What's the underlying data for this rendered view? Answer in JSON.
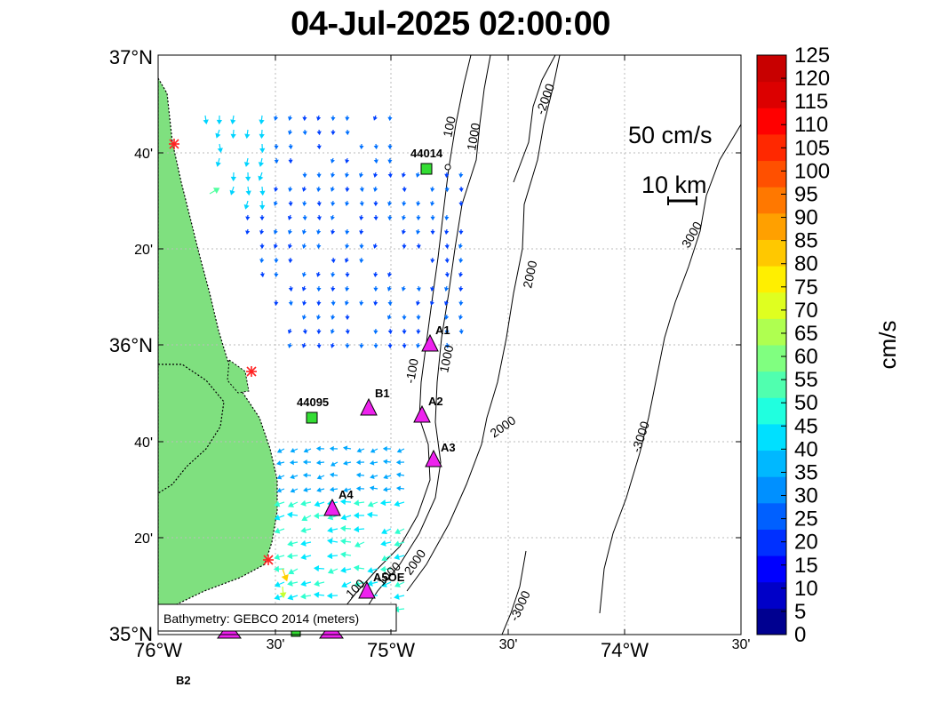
{
  "title": "04-Jul-2025 02:00:00",
  "map": {
    "lat_ticks": [
      {
        "label": "37°N",
        "big": true
      },
      {
        "label": "40'",
        "big": false
      },
      {
        "label": "20'",
        "big": false
      },
      {
        "label": "36°N",
        "big": true
      },
      {
        "label": "40'",
        "big": false
      },
      {
        "label": "20'",
        "big": false
      },
      {
        "label": "35°N",
        "big": true
      }
    ],
    "lon_ticks": [
      {
        "label": "76°W",
        "big": true
      },
      {
        "label": "30'",
        "big": false
      },
      {
        "label": "75°W",
        "big": true
      },
      {
        "label": "30'",
        "big": false
      },
      {
        "label": "74°W",
        "big": true
      },
      {
        "label": "30'",
        "big": false
      }
    ],
    "scale_speed_label": "50 cm/s",
    "scale_distance_label": "10 km",
    "bathymetry_note": "Bathymetry: GEBCO 2014 (meters)",
    "contour_labels": [
      "100",
      "1000",
      "-2000",
      "3000",
      "2000",
      "-100",
      "1000",
      "2000",
      "-3000",
      "100",
      "1000",
      "2000",
      "-3000"
    ],
    "stations": {
      "buoys": [
        "44014",
        "44095"
      ],
      "triangles": [
        "A1",
        "B1",
        "A2",
        "A3",
        "A4",
        "A5OE",
        "B2"
      ]
    },
    "colors": {
      "land": "#7fe07f",
      "buoy": "#33dd33",
      "triangle": "#ee22ee",
      "shore_marker": "#ff2222"
    }
  },
  "colorbar": {
    "title": "cm/s",
    "tick_labels": [
      "125",
      "120",
      "115",
      "110",
      "105",
      "100",
      "95",
      "90",
      "85",
      "80",
      "75",
      "70",
      "65",
      "60",
      "55",
      "50",
      "45",
      "40",
      "35",
      "30",
      "25",
      "20",
      "15",
      "10",
      "5",
      "0"
    ],
    "colors": [
      "#000090",
      "#0000c8",
      "#0000ff",
      "#0030ff",
      "#0060ff",
      "#0090ff",
      "#00b8ff",
      "#00e0ff",
      "#20ffdf",
      "#50ffaf",
      "#80ff80",
      "#afff50",
      "#dfff20",
      "#ffef00",
      "#ffc800",
      "#ffa000",
      "#ff7800",
      "#ff5000",
      "#ff2800",
      "#ff0000",
      "#dc0000",
      "#c80000"
    ]
  }
}
